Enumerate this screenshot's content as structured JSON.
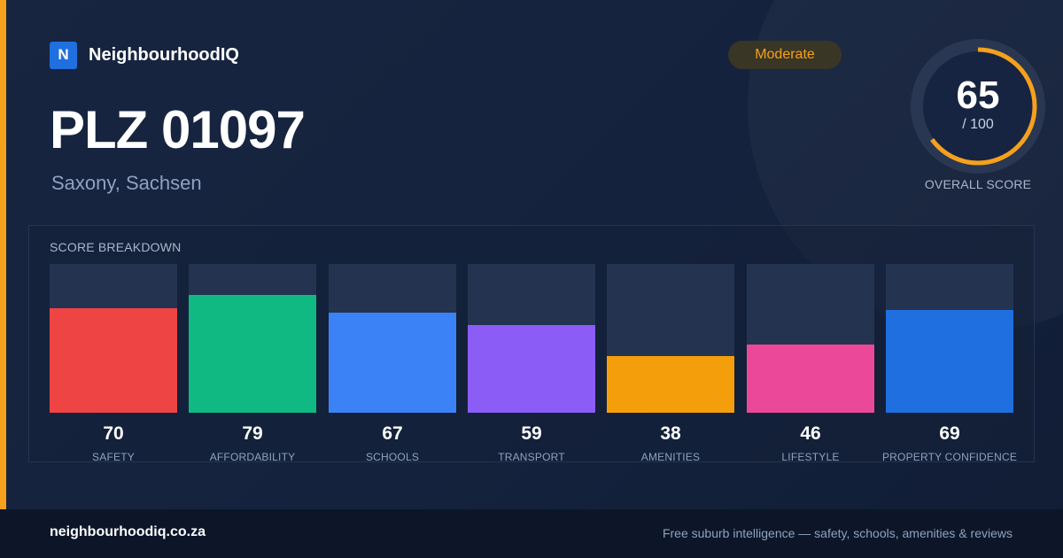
{
  "brand": {
    "logo_letter": "N",
    "name": "NeighbourhoodIQ",
    "brand_color": "#1f6fe0"
  },
  "badge": {
    "label": "Moderate",
    "color": "#f5a11c"
  },
  "header": {
    "title": "PLZ 01097",
    "subtitle": "Saxony, Sachsen"
  },
  "overall": {
    "value": "65",
    "max_label": "/ 100",
    "caption": "OVERALL SCORE",
    "fraction": 0.65,
    "ring_color": "#f5a11c"
  },
  "breakdown": {
    "title": "SCORE BREAKDOWN",
    "items": [
      {
        "value": 70,
        "label": "SAFETY",
        "color": "#ef4444"
      },
      {
        "value": 79,
        "label": "AFFORDABILITY",
        "color": "#10b981"
      },
      {
        "value": 67,
        "label": "SCHOOLS",
        "color": "#3b82f6"
      },
      {
        "value": 59,
        "label": "TRANSPORT",
        "color": "#8b5cf6"
      },
      {
        "value": 38,
        "label": "AMENITIES",
        "color": "#f59e0b"
      },
      {
        "value": 46,
        "label": "LIFESTYLE",
        "color": "#ec4899"
      },
      {
        "value": 69,
        "label": "PROPERTY CONFIDENCE",
        "color": "#1f6fe0"
      }
    ]
  },
  "footer": {
    "domain": "neighbourhoodiq.co.za",
    "tagline": "Free suburb intelligence — safety, schools, amenities & reviews"
  }
}
